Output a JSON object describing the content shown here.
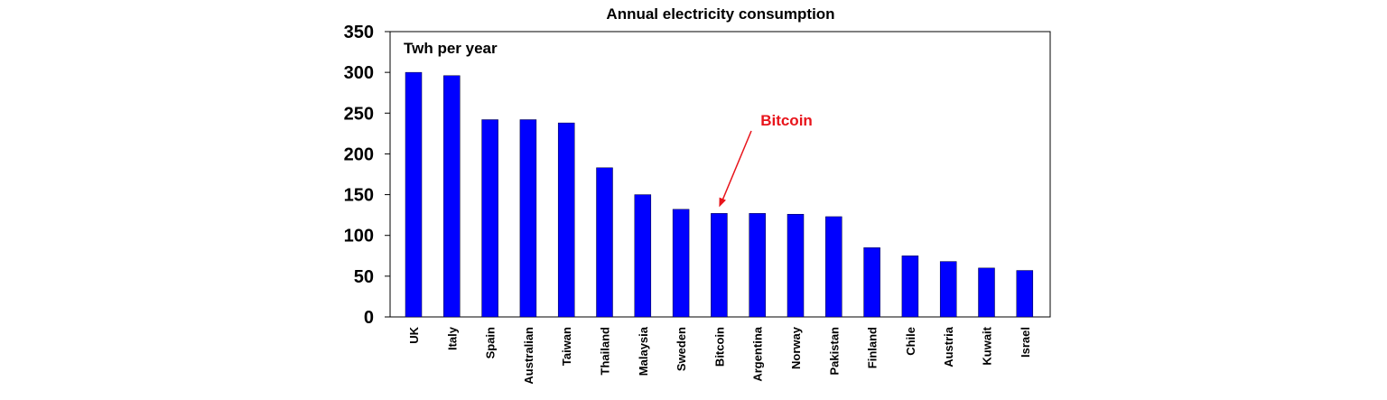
{
  "chart_data": {
    "type": "bar",
    "title": "Annual electricity consumption",
    "unit_label": "Twh per year",
    "categories": [
      "UK",
      "Italy",
      "Spain",
      "Australian",
      "Taiwan",
      "Thailand",
      "Malaysia",
      "Sweden",
      "Bitcoin",
      "Argentina",
      "Norway",
      "Pakistan",
      "Finland",
      "Chile",
      "Austria",
      "Kuwait",
      "Israel"
    ],
    "values": [
      300,
      296,
      242,
      242,
      238,
      183,
      150,
      132,
      127,
      127,
      126,
      123,
      85,
      75,
      68,
      60,
      57
    ],
    "ylim": [
      0,
      350
    ],
    "yticks": [
      "0",
      "50",
      "100",
      "150",
      "200",
      "250",
      "300",
      "350"
    ],
    "bar_color": "#0000ff",
    "grid": false,
    "annotation": {
      "text": "Bitcoin",
      "target": "Bitcoin",
      "color": "#e8141b"
    }
  }
}
